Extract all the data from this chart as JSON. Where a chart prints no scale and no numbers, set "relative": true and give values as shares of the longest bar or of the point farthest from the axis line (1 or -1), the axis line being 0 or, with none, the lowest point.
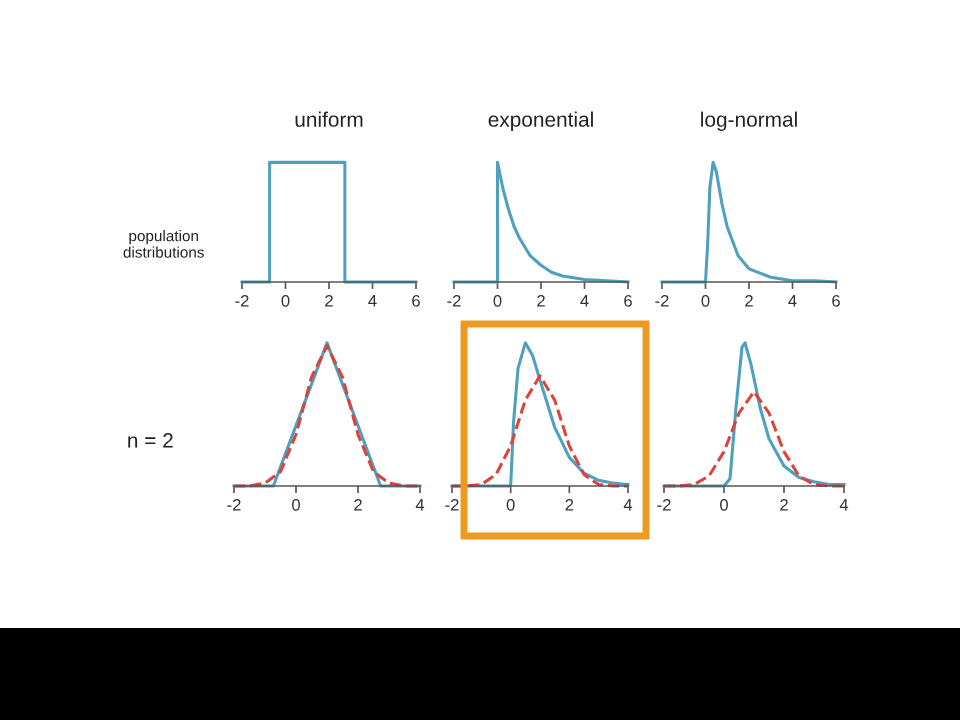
{
  "chart_data": [
    {
      "type": "line",
      "title": "uniform",
      "relative": true,
      "tick_labels": "x",
      "xlim": [
        -2,
        6
      ],
      "xticks": [
        -2,
        0,
        2,
        4,
        6
      ],
      "annotations": [
        "population\ndistributions"
      ],
      "series": [
        {
          "color": "#4f9fbf",
          "line_style": "solid",
          "x": [
            -2,
            -0.73,
            -0.73,
            2.73,
            2.73,
            6
          ],
          "values": [
            0,
            0,
            1,
            1,
            0,
            0
          ]
        }
      ]
    },
    {
      "type": "line",
      "title": "exponential",
      "relative": true,
      "tick_labels": "x",
      "xlim": [
        -2,
        6
      ],
      "xticks": [
        -2,
        0,
        2,
        4,
        6
      ],
      "series": [
        {
          "color": "#4f9fbf",
          "line_style": "solid",
          "x": [
            -2,
            0,
            0,
            0.25,
            0.5,
            0.75,
            1,
            1.5,
            2,
            2.5,
            3,
            4,
            5,
            6
          ],
          "values": [
            0,
            0,
            1,
            0.78,
            0.61,
            0.47,
            0.37,
            0.22,
            0.14,
            0.08,
            0.05,
            0.02,
            0.01,
            0
          ]
        }
      ]
    },
    {
      "type": "line",
      "title": "log-normal",
      "relative": true,
      "tick_labels": "x",
      "xlim": [
        -2,
        6
      ],
      "xticks": [
        -2,
        0,
        2,
        4,
        6
      ],
      "series": [
        {
          "color": "#4f9fbf",
          "line_style": "solid",
          "x": [
            -2,
            0,
            0.1,
            0.2,
            0.35,
            0.5,
            0.75,
            1,
            1.5,
            2,
            3,
            4,
            5,
            6
          ],
          "values": [
            0,
            0,
            0.32,
            0.79,
            1,
            0.92,
            0.66,
            0.46,
            0.22,
            0.11,
            0.04,
            0.01,
            0.01,
            0
          ]
        }
      ]
    },
    {
      "type": "line",
      "relative": true,
      "tick_labels": "x",
      "xlim": [
        -2,
        4
      ],
      "xticks": [
        -2,
        0,
        2,
        4
      ],
      "annotations": [
        "n = 2"
      ],
      "series": [
        {
          "color": "#4f9fbf",
          "line_style": "solid",
          "x": [
            -2,
            -0.73,
            1,
            2.73,
            4
          ],
          "values": [
            0,
            0,
            1,
            0,
            0
          ]
        },
        {
          "color": "#d9443c",
          "line_style": "dashed",
          "x": [
            -2,
            -1.5,
            -1,
            -0.5,
            0,
            0.5,
            1,
            1.5,
            2,
            2.5,
            3,
            3.5,
            4
          ],
          "values": [
            0,
            0,
            0.02,
            0.1,
            0.36,
            0.76,
            0.98,
            0.76,
            0.36,
            0.1,
            0.02,
            0,
            0
          ]
        }
      ]
    },
    {
      "type": "line",
      "relative": true,
      "tick_labels": "x",
      "xlim": [
        -2,
        4
      ],
      "xticks": [
        -2,
        0,
        2,
        4
      ],
      "series": [
        {
          "color": "#4f9fbf",
          "line_style": "solid",
          "x": [
            -2,
            0,
            0.1,
            0.25,
            0.5,
            0.75,
            1,
            1.5,
            2,
            2.5,
            3,
            3.5,
            4
          ],
          "values": [
            0,
            0,
            0.45,
            0.82,
            1,
            0.91,
            0.74,
            0.41,
            0.2,
            0.09,
            0.04,
            0.02,
            0.01
          ]
        },
        {
          "color": "#d9443c",
          "line_style": "dashed",
          "x": [
            -2,
            -1.5,
            -1,
            -0.5,
            0,
            0.5,
            1,
            1.5,
            2,
            2.5,
            3,
            3.5,
            4
          ],
          "values": [
            0,
            0,
            0.01,
            0.08,
            0.28,
            0.6,
            0.77,
            0.6,
            0.28,
            0.08,
            0.01,
            0,
            0
          ]
        }
      ]
    },
    {
      "type": "line",
      "relative": true,
      "tick_labels": "x",
      "xlim": [
        -2,
        4
      ],
      "xticks": [
        -2,
        0,
        2,
        4
      ],
      "series": [
        {
          "color": "#4f9fbf",
          "line_style": "solid",
          "x": [
            -2,
            0,
            0.2,
            0.4,
            0.6,
            0.7,
            0.9,
            1.2,
            1.5,
            2,
            2.5,
            3,
            3.5,
            4
          ],
          "values": [
            0,
            0,
            0.05,
            0.55,
            0.97,
            1,
            0.85,
            0.55,
            0.33,
            0.14,
            0.06,
            0.03,
            0.01,
            0.01
          ]
        },
        {
          "color": "#d9443c",
          "line_style": "dashed",
          "x": [
            -2,
            -1.5,
            -1,
            -0.5,
            0,
            0.5,
            1,
            1.5,
            2,
            2.5,
            3,
            3.5,
            4
          ],
          "values": [
            0,
            0,
            0.01,
            0.07,
            0.24,
            0.51,
            0.66,
            0.51,
            0.24,
            0.07,
            0.01,
            0,
            0
          ]
        }
      ]
    }
  ]
}
